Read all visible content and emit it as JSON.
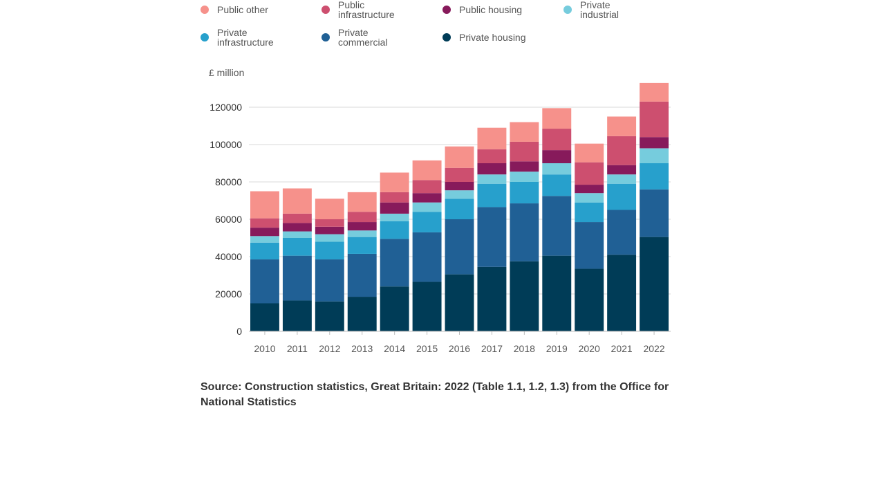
{
  "chart_data": {
    "type": "bar",
    "stacked": true,
    "unit_label": "£ million",
    "categories": [
      "2010",
      "2011",
      "2012",
      "2013",
      "2014",
      "2015",
      "2016",
      "2017",
      "2018",
      "2019",
      "2020",
      "2021",
      "2022"
    ],
    "ylim": [
      0,
      135000
    ],
    "yticks": [
      "0",
      "20000",
      "40000",
      "60000",
      "80000",
      "100000",
      "120000"
    ],
    "grid": true,
    "legend_position": "top",
    "series": [
      {
        "name": "Private housing",
        "color": "#003c57",
        "values": [
          15000,
          16500,
          16000,
          18500,
          24000,
          26500,
          30500,
          34500,
          37500,
          40500,
          33500,
          41000,
          50500
        ]
      },
      {
        "name": "Private commercial",
        "color": "#206095",
        "values": [
          23500,
          24000,
          22500,
          23000,
          25500,
          26500,
          29500,
          32000,
          31000,
          32000,
          25000,
          24000,
          25500
        ]
      },
      {
        "name": "Private infrastructure",
        "color": "#27a0cc",
        "values": [
          9000,
          9500,
          9500,
          9000,
          9500,
          11000,
          11000,
          12500,
          11500,
          11500,
          10500,
          14000,
          14000
        ]
      },
      {
        "name": "Private industrial",
        "color": "#76ccdd",
        "values": [
          3500,
          3500,
          4000,
          3500,
          4000,
          5000,
          4500,
          5000,
          5500,
          6000,
          5000,
          5000,
          8000
        ]
      },
      {
        "name": "Public housing",
        "color": "#871a5b",
        "values": [
          4500,
          4500,
          4000,
          4500,
          6000,
          5000,
          4500,
          6000,
          5500,
          7000,
          4500,
          5000,
          6000
        ]
      },
      {
        "name": "Public infrastructure",
        "color": "#cd4f6f",
        "values": [
          5000,
          5000,
          4000,
          5500,
          5500,
          7000,
          7500,
          7500,
          10500,
          11500,
          12000,
          15500,
          19000
        ]
      },
      {
        "name": "Public other",
        "color": "#f6918b",
        "values": [
          14500,
          13500,
          11000,
          10500,
          10500,
          10500,
          11500,
          11500,
          10500,
          11000,
          10000,
          10500,
          10000
        ]
      }
    ]
  },
  "legend_rows": [
    [
      "Public other",
      "Public\ninfrastructure",
      "Public housing",
      "Private\nindustrial"
    ],
    [
      "Private\ninfrastructure",
      "Private\ncommercial",
      "Private housing"
    ]
  ],
  "source": "Source: Construction statistics, Great Britain: 2022 (Table 1.1, 1.2, 1.3) from the Office for National Statistics"
}
